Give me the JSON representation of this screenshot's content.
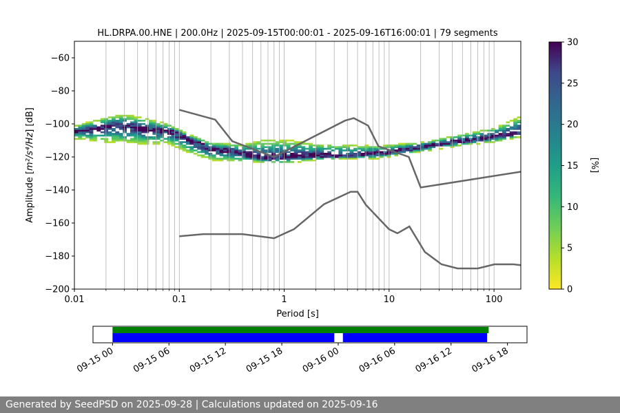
{
  "chart_data": {
    "type": "heatmap",
    "title": "HL.DRPA.00.HNE | 200.0Hz | 2025-09-15T00:00:01 - 2025-09-16T16:00:01 | 79 segments",
    "xlabel": "Period [s]",
    "ylabel_main": "Amplitude [",
    "ylabel_unit": "m²/s⁴/Hz",
    "ylabel_end": "] [dB]",
    "x_scale": "log",
    "xlim": [
      0.01,
      180
    ],
    "ylim": [
      -200,
      -50
    ],
    "x_ticks": [
      0.01,
      0.1,
      1,
      10,
      100
    ],
    "x_tick_labels": [
      "0.01",
      "0.1",
      "1",
      "10",
      "100"
    ],
    "y_ticks": [
      -200,
      -180,
      -160,
      -140,
      -120,
      -100,
      -80,
      -60
    ],
    "y_tick_labels": [
      "−200",
      "−180",
      "−160",
      "−140",
      "−120",
      "−100",
      "−80",
      "−60"
    ],
    "grid": "vertical",
    "colorbar": {
      "label": "[%]",
      "range": [
        0,
        30
      ],
      "ticks": [
        0,
        5,
        10,
        15,
        20,
        25,
        30
      ],
      "tick_labels": [
        "0",
        "5",
        "10",
        "15",
        "20",
        "25",
        "30"
      ],
      "colormap": "viridis_r"
    },
    "noise_models": [
      {
        "name": "high",
        "points": [
          [
            0.1,
            -91.5
          ],
          [
            0.22,
            -97.4
          ],
          [
            0.32,
            -110.5
          ],
          [
            0.8,
            -120
          ],
          [
            3.8,
            -98
          ],
          [
            4.6,
            -96.5
          ],
          [
            6.3,
            -101
          ],
          [
            7.9,
            -113.5
          ],
          [
            15.4,
            -120
          ],
          [
            20,
            -138.5
          ],
          [
            354,
            -126
          ]
        ]
      },
      {
        "name": "low",
        "points": [
          [
            0.1,
            -168
          ],
          [
            0.17,
            -166.7
          ],
          [
            0.4,
            -166.7
          ],
          [
            0.8,
            -169.2
          ],
          [
            1.24,
            -163.7
          ],
          [
            2.4,
            -148.6
          ],
          [
            4.3,
            -141.1
          ],
          [
            5,
            -141.1
          ],
          [
            6,
            -149
          ],
          [
            10,
            -163.8
          ],
          [
            12,
            -166.2
          ],
          [
            15.6,
            -162.1
          ],
          [
            21.9,
            -177.5
          ],
          [
            31.6,
            -185
          ],
          [
            45,
            -187.5
          ],
          [
            70,
            -187.5
          ],
          [
            101,
            -185
          ],
          [
            154,
            -185
          ],
          [
            328,
            -187.5
          ]
        ]
      }
    ],
    "psd_mode": [
      [
        0.01,
        -104
      ],
      [
        0.015,
        -103
      ],
      [
        0.025,
        -100.5
      ],
      [
        0.04,
        -102.5
      ],
      [
        0.06,
        -103.5
      ],
      [
        0.09,
        -105
      ],
      [
        0.13,
        -110
      ],
      [
        0.2,
        -115
      ],
      [
        0.3,
        -116.5
      ],
      [
        0.45,
        -119
      ],
      [
        0.7,
        -121
      ],
      [
        1,
        -120
      ],
      [
        2,
        -119
      ],
      [
        4,
        -119.5
      ],
      [
        6,
        -118.5
      ],
      [
        10,
        -117
      ],
      [
        20,
        -114
      ],
      [
        40,
        -111
      ],
      [
        80,
        -109
      ],
      [
        180,
        -105
      ]
    ],
    "psd_upper": [
      [
        0.01,
        -101
      ],
      [
        0.02,
        -96
      ],
      [
        0.03,
        -94
      ],
      [
        0.05,
        -97
      ],
      [
        0.08,
        -100
      ],
      [
        0.12,
        -106
      ],
      [
        0.2,
        -111
      ],
      [
        0.4,
        -112
      ],
      [
        0.7,
        -109
      ],
      [
        1.2,
        -110
      ],
      [
        2,
        -112
      ],
      [
        4,
        -112.5
      ],
      [
        8,
        -113
      ],
      [
        20,
        -111
      ],
      [
        50,
        -106
      ],
      [
        100,
        -102
      ],
      [
        180,
        -95
      ]
    ],
    "psd_lower": [
      [
        0.01,
        -109
      ],
      [
        0.02,
        -111
      ],
      [
        0.04,
        -112
      ],
      [
        0.08,
        -112
      ],
      [
        0.13,
        -118
      ],
      [
        0.2,
        -122
      ],
      [
        0.5,
        -123
      ],
      [
        1,
        -124
      ],
      [
        2,
        -122
      ],
      [
        4,
        -121
      ],
      [
        8,
        -121
      ],
      [
        20,
        -117
      ],
      [
        50,
        -113
      ],
      [
        100,
        -111
      ],
      [
        180,
        -108
      ]
    ],
    "timeline": {
      "start": "2025-09-15T00:00",
      "end": "2025-09-16T18:00",
      "data_span": [
        "2025-09-15T00:00",
        "2025-09-16T16:00"
      ],
      "segments": [
        [
          "2025-09-15T00:00",
          "2025-09-15T23:35"
        ],
        [
          "2025-09-16T00:30",
          "2025-09-16T15:50"
        ]
      ],
      "ticks": [
        "2025-09-15T00:00",
        "2025-09-15T06:00",
        "2025-09-15T12:00",
        "2025-09-15T18:00",
        "2025-09-16T00:00",
        "2025-09-16T06:00",
        "2025-09-16T12:00",
        "2025-09-16T18:00"
      ],
      "tick_labels": [
        "09-15 00",
        "09-15 06",
        "09-15 12",
        "09-15 18",
        "09-16 00",
        "09-16 06",
        "09-16 12",
        "09-16 18"
      ],
      "colors": {
        "data_span": "#008000",
        "segments": "#0000ff"
      }
    }
  },
  "footer": {
    "text": "Generated by SeedPSD on 2025-09-28 | Calculations updated on 2025-09-16"
  },
  "colors": {
    "noise_model": "#666666",
    "grid": "#b0b0b0",
    "footer_bg": "#808080"
  }
}
